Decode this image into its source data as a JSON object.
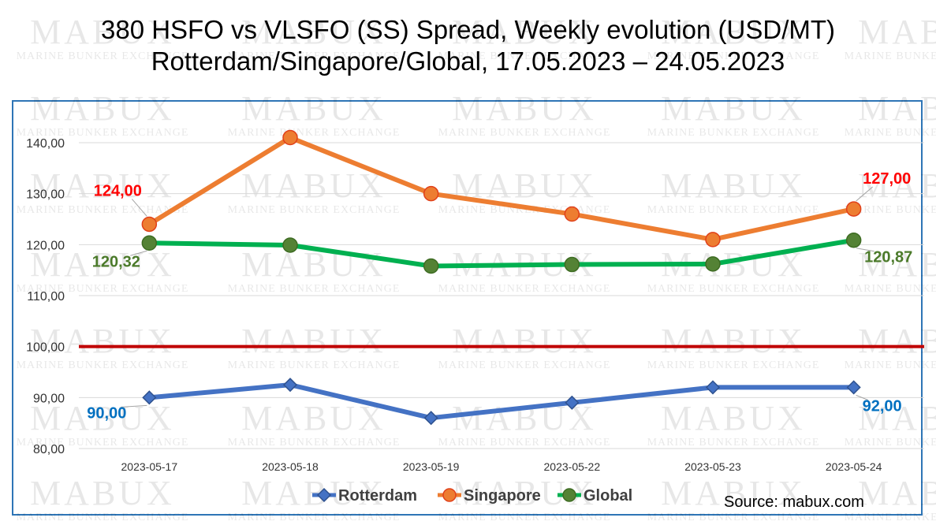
{
  "title": {
    "line1": "380 HSFO vs VLSFO (SS) Spread, Weekly evolution (USD/MT)",
    "line2": "Rotterdam/Singapore/Global, 17.05.2023 – 24.05.2023"
  },
  "watermark": {
    "brand": "MABUX",
    "subtitle": "MARINE BUNKER EXCHANGE"
  },
  "source": "Source: mabux.com",
  "colors": {
    "rotterdam": "#4472c4",
    "singapore": "#ed7d31",
    "global": "#00b050",
    "global_marker": "#548235",
    "reference": "#c00000",
    "label_red": "#ff0000",
    "label_green": "#4b7a2a",
    "label_blue": "#0070c0",
    "frame": "#2e75b6"
  },
  "chart_data": {
    "type": "line",
    "categories": [
      "2023-05-17",
      "2023-05-18",
      "2023-05-19",
      "2023-05-22",
      "2023-05-23",
      "2023-05-24"
    ],
    "ylim": [
      80,
      140
    ],
    "yticks": [
      80,
      90,
      100,
      110,
      120,
      130,
      140
    ],
    "ytick_labels": [
      "80,00",
      "90,00",
      "100,00",
      "110,00",
      "120,00",
      "130,00",
      "140,00"
    ],
    "grid": true,
    "legend_position": "bottom",
    "reference_line": 100,
    "series": [
      {
        "name": "Rotterdam",
        "key": "rotterdam",
        "marker": "diamond",
        "values": [
          90,
          92.5,
          86,
          89,
          92,
          92
        ]
      },
      {
        "name": "Singapore",
        "key": "singapore",
        "marker": "circle",
        "values": [
          124,
          141,
          130,
          126,
          121,
          127
        ]
      },
      {
        "name": "Global",
        "key": "global",
        "marker": "circle",
        "values": [
          120.32,
          119.9,
          115.8,
          116.1,
          116.2,
          120.87
        ]
      }
    ],
    "data_labels": [
      {
        "text": "124,00",
        "series": "singapore",
        "index": 0,
        "color": "red"
      },
      {
        "text": "127,00",
        "series": "singapore",
        "index": 5,
        "color": "red"
      },
      {
        "text": "120,32",
        "series": "global",
        "index": 0,
        "color": "green"
      },
      {
        "text": "120,87",
        "series": "global",
        "index": 5,
        "color": "green"
      },
      {
        "text": "90,00",
        "series": "rotterdam",
        "index": 0,
        "color": "blue"
      },
      {
        "text": "92,00",
        "series": "rotterdam",
        "index": 5,
        "color": "blue"
      }
    ]
  }
}
